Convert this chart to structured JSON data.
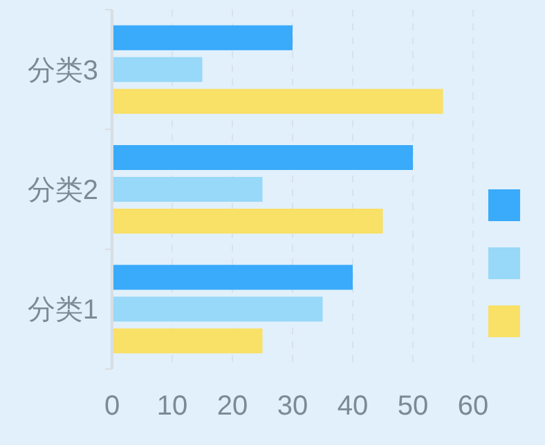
{
  "chart_data": {
    "type": "bar",
    "orientation": "horizontal",
    "categories": [
      "分类3",
      "分类2",
      "分类1"
    ],
    "series": [
      {
        "color": "#3aaafa",
        "values": [
          30,
          50,
          40
        ]
      },
      {
        "color": "#98d8f8",
        "values": [
          15,
          25,
          35
        ]
      },
      {
        "color": "#f9e066",
        "values": [
          55,
          45,
          25
        ]
      }
    ],
    "xlim": [
      0,
      60
    ],
    "xticks": [
      0,
      10,
      20,
      30,
      40,
      50,
      60
    ],
    "grid": "x"
  }
}
